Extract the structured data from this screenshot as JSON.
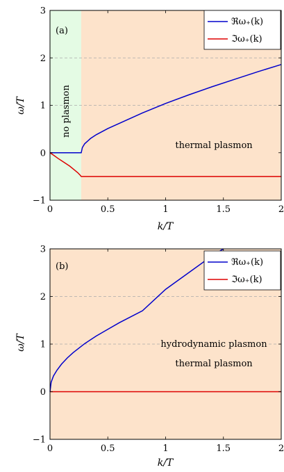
{
  "chart_data": [
    {
      "type": "line",
      "panel_label": "(a)",
      "xlabel": "k/T",
      "ylabel": "ω/T",
      "xlim": [
        0,
        2
      ],
      "ylim": [
        -1,
        3
      ],
      "xticks": [
        "0",
        "0.5",
        "1",
        "1.5",
        "2"
      ],
      "yticks": [
        "−1",
        "0",
        "1",
        "2",
        "3"
      ],
      "grid": "dashed horizontal at ω/T = 1, 2",
      "legend": {
        "placement": "top-right",
        "entries": [
          "ℜω₊(k)",
          "ℑω₊(k)"
        ]
      },
      "regions": [
        {
          "label": "no plasmon",
          "from": 0,
          "to": 0.27,
          "color": "#e4fbe4"
        },
        {
          "label": "thermal plasmon",
          "from": 0.27,
          "to": 2,
          "color": "#fde3cb"
        }
      ],
      "series": [
        {
          "name": "ℜω₊(k)",
          "color": "#0000cc",
          "x": [
            0,
            0.27,
            0.28,
            0.3,
            0.35,
            0.4,
            0.5,
            0.6,
            0.8,
            1.0,
            1.2,
            1.4,
            1.6,
            1.8,
            2.0
          ],
          "y": [
            0,
            0,
            0.11,
            0.19,
            0.3,
            0.38,
            0.51,
            0.62,
            0.84,
            1.04,
            1.22,
            1.39,
            1.55,
            1.71,
            1.86
          ]
        },
        {
          "name": "ℑω₊(k)",
          "color": "#dd0000",
          "x": [
            0,
            0.03,
            0.07,
            0.12,
            0.17,
            0.21,
            0.24,
            0.26,
            0.27,
            0.5,
            1.0,
            1.5,
            2.0
          ],
          "y": [
            0,
            -0.05,
            -0.12,
            -0.2,
            -0.28,
            -0.36,
            -0.42,
            -0.47,
            -0.5,
            -0.5,
            -0.5,
            -0.5,
            -0.5
          ]
        }
      ]
    },
    {
      "type": "line",
      "panel_label": "(b)",
      "xlabel": "k/T",
      "ylabel": "ω/T",
      "xlim": [
        0,
        2
      ],
      "ylim": [
        -1,
        3
      ],
      "xticks": [
        "0",
        "0.5",
        "1",
        "1.5",
        "2"
      ],
      "yticks": [
        "−1",
        "0",
        "1",
        "2",
        "3"
      ],
      "grid": "dashed horizontal at ω/T = 1, 2",
      "legend": {
        "placement": "top-right",
        "entries": [
          "ℜω₊(k)",
          "ℑω₊(k)"
        ]
      },
      "annotations": [
        "hydrodynamic plasmon",
        "thermal plasmon"
      ],
      "background": "#fde3cb",
      "series": [
        {
          "name": "ℜω₊(k)",
          "color": "#0000cc",
          "x": [
            0,
            0.01,
            0.03,
            0.06,
            0.1,
            0.15,
            0.2,
            0.3,
            0.4,
            0.5,
            0.6,
            0.8,
            1.0,
            1.2,
            1.4,
            1.5
          ],
          "y": [
            0,
            0.2,
            0.33,
            0.45,
            0.58,
            0.71,
            0.82,
            1.01,
            1.17,
            1.31,
            1.45,
            1.7,
            2.15,
            2.5,
            2.85,
            3.0
          ]
        },
        {
          "name": "ℑω₊(k)",
          "color": "#dd0000",
          "x": [
            0,
            2
          ],
          "y": [
            0,
            0
          ]
        }
      ]
    }
  ]
}
